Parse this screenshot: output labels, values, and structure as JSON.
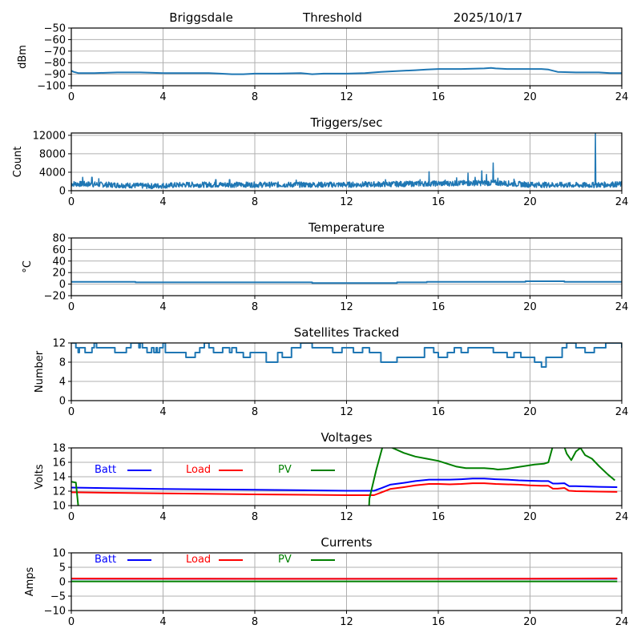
{
  "header": {
    "station": "Briggsdale",
    "mode": "Threshold",
    "date": "2025/10/17"
  },
  "chart_data": [
    {
      "id": "threshold",
      "type": "line",
      "title": "",
      "xlabel": "",
      "ylabel": "dBm",
      "xlim": [
        0,
        24
      ],
      "ylim": [
        -100,
        -50
      ],
      "xticks": [
        "0",
        "4",
        "8",
        "12",
        "16",
        "20",
        "24"
      ],
      "yticks": [
        "−100",
        "−90",
        "−80",
        "−70",
        "−60",
        "−50"
      ],
      "ytick_values": [
        -100,
        -90,
        -80,
        -70,
        -60,
        -50
      ],
      "grid": true,
      "series": [
        {
          "name": "threshold",
          "color": "#1f77b4",
          "x": [
            0,
            0.1,
            0.3,
            1,
            2,
            3,
            4,
            5,
            6,
            6.5,
            7,
            7.5,
            8,
            9,
            10,
            10.5,
            11,
            12,
            12.8,
            13.5,
            14,
            14.5,
            15,
            15.5,
            16,
            17,
            18,
            18.3,
            18.5,
            19,
            20,
            20.5,
            20.8,
            21.2,
            22,
            23,
            23.5,
            24
          ],
          "y": [
            -87,
            -88,
            -89,
            -89,
            -88.5,
            -88.5,
            -89,
            -89,
            -89,
            -89.5,
            -90,
            -90,
            -89.5,
            -89.5,
            -89,
            -90,
            -89.5,
            -89.5,
            -89,
            -88,
            -87.5,
            -87,
            -86.5,
            -86,
            -85.5,
            -85.5,
            -85,
            -84.5,
            -85,
            -85.5,
            -85.5,
            -85.5,
            -86,
            -88,
            -88.5,
            -88.5,
            -89,
            -89
          ]
        }
      ]
    },
    {
      "id": "triggers",
      "type": "line",
      "title": "Triggers/sec",
      "xlabel": "",
      "ylabel": "Count",
      "xlim": [
        0,
        24
      ],
      "ylim": [
        0,
        12500
      ],
      "xticks": [
        "0",
        "4",
        "8",
        "12",
        "16",
        "20",
        "24"
      ],
      "yticks": [
        "0",
        "4000",
        "8000",
        "12000"
      ],
      "ytick_values": [
        0,
        4000,
        8000,
        12000
      ],
      "grid": true,
      "series": [
        {
          "name": "triggers",
          "color": "#1f77b4",
          "baseline": [
            [
              0,
              1500
            ],
            [
              1.5,
              1300
            ],
            [
              3.5,
              1000
            ],
            [
              5,
              1300
            ],
            [
              8,
              1300
            ],
            [
              12,
              1300
            ],
            [
              15,
              1500
            ],
            [
              18.5,
              1700
            ],
            [
              20,
              1300
            ],
            [
              22.5,
              1200
            ],
            [
              24,
              1400
            ]
          ],
          "spikes": [
            [
              0.5,
              2900
            ],
            [
              0.9,
              2900
            ],
            [
              1.2,
              2600
            ],
            [
              6.3,
              2400
            ],
            [
              6.9,
              2400
            ],
            [
              9.8,
              2300
            ],
            [
              13.7,
              2400
            ],
            [
              15.2,
              2400
            ],
            [
              15.6,
              4100
            ],
            [
              16.3,
              2300
            ],
            [
              16.8,
              2800
            ],
            [
              17.3,
              3800
            ],
            [
              17.6,
              2900
            ],
            [
              17.9,
              4300
            ],
            [
              18.1,
              3500
            ],
            [
              18.4,
              6000
            ],
            [
              18.6,
              2700
            ],
            [
              19.3,
              2500
            ],
            [
              20.1,
              1800
            ],
            [
              22.85,
              12500
            ],
            [
              23.6,
              1900
            ]
          ]
        }
      ]
    },
    {
      "id": "temperature",
      "type": "line",
      "title": "Temperature",
      "xlabel": "",
      "ylabel": "°C",
      "xlim": [
        0,
        24
      ],
      "ylim": [
        -20,
        80
      ],
      "xticks": [
        "0",
        "4",
        "8",
        "12",
        "16",
        "20",
        "24"
      ],
      "yticks": [
        "−20",
        "0",
        "20",
        "40",
        "60",
        "80"
      ],
      "ytick_values": [
        -20,
        0,
        20,
        40,
        60,
        80
      ],
      "grid": true,
      "series": [
        {
          "name": "temperature",
          "color": "#1f77b4",
          "step": true,
          "x": [
            0,
            2.8,
            10.5,
            14.2,
            15.5,
            19.8,
            21.5,
            24
          ],
          "y": [
            4,
            3,
            2,
            3,
            4,
            5,
            4,
            4
          ]
        }
      ]
    },
    {
      "id": "satellites",
      "type": "line",
      "title": "Satellites Tracked",
      "xlabel": "",
      "ylabel": "Number",
      "xlim": [
        0,
        24
      ],
      "ylim": [
        0,
        12
      ],
      "xticks": [
        "0",
        "4",
        "8",
        "12",
        "16",
        "20",
        "24"
      ],
      "yticks": [
        "0",
        "4",
        "8",
        "12"
      ],
      "ytick_values": [
        0,
        4,
        8,
        12
      ],
      "grid": true,
      "series": [
        {
          "name": "satellites",
          "color": "#1f77b4",
          "step": true,
          "x": [
            0,
            0.2,
            0.3,
            0.35,
            0.5,
            0.6,
            0.9,
            1.0,
            1.1,
            1.3,
            1.9,
            2.4,
            2.6,
            2.8,
            2.95,
            3.0,
            3.1,
            3.3,
            3.5,
            3.6,
            3.7,
            3.75,
            3.85,
            4.0,
            4.1,
            4.5,
            5.0,
            5.4,
            5.6,
            5.8,
            6.0,
            6.2,
            6.6,
            6.9,
            7.0,
            7.2,
            7.5,
            7.8,
            8.2,
            8.5,
            8.8,
            9.0,
            9.2,
            9.6,
            10.0,
            10.5,
            11.0,
            11.4,
            11.8,
            12.3,
            12.7,
            13.0,
            13.5,
            13.8,
            14.2,
            14.6,
            15.0,
            15.4,
            15.8,
            16.0,
            16.4,
            16.7,
            17.0,
            17.3,
            18.0,
            18.4,
            18.7,
            19.0,
            19.3,
            19.6,
            20.0,
            20.2,
            20.5,
            20.7,
            21.0,
            21.4,
            21.6,
            22.0,
            22.4,
            22.8,
            23.1,
            23.3,
            23.6,
            24
          ],
          "y": [
            12,
            11,
            10,
            11,
            11,
            10,
            11,
            12,
            11,
            11,
            10,
            11,
            12,
            12,
            11,
            12,
            11,
            10,
            11,
            10,
            11,
            10,
            11,
            12,
            10,
            10,
            9,
            10,
            11,
            12,
            11,
            10,
            11,
            10,
            11,
            10,
            9,
            10,
            10,
            8,
            8,
            10,
            9,
            11,
            12,
            11,
            11,
            10,
            11,
            10,
            11,
            10,
            8,
            8,
            9,
            9,
            9,
            11,
            10,
            9,
            10,
            11,
            10,
            11,
            11,
            10,
            10,
            9,
            10,
            9,
            9,
            8,
            7,
            9,
            9,
            11,
            12,
            11,
            10,
            11,
            11,
            12,
            12,
            11
          ]
        }
      ]
    },
    {
      "id": "voltages",
      "type": "line",
      "title": "Voltages",
      "xlabel": "",
      "ylabel": "Volts",
      "xlim": [
        0,
        24
      ],
      "ylim": [
        10,
        18
      ],
      "xticks": [
        "0",
        "4",
        "8",
        "12",
        "16",
        "20",
        "24"
      ],
      "yticks": [
        "10",
        "12",
        "14",
        "16",
        "18"
      ],
      "ytick_values": [
        10,
        12,
        14,
        16,
        18
      ],
      "grid": true,
      "legend": {
        "placement": "top-inline",
        "entries": [
          "Batt",
          "Load",
          "PV"
        ]
      },
      "series": [
        {
          "name": "Batt",
          "color": "#0000ff",
          "x": [
            0,
            4,
            8,
            12,
            13.2,
            13.5,
            13.9,
            14.5,
            15.0,
            15.6,
            16.0,
            16.5,
            17.0,
            17.5,
            18.0,
            18.5,
            19.0,
            19.5,
            20.0,
            20.5,
            20.8,
            21.0,
            21.2,
            21.5,
            21.7,
            22.0,
            23.0,
            23.8
          ],
          "y": [
            12.5,
            12.3,
            12.2,
            12.05,
            12.05,
            12.4,
            12.9,
            13.15,
            13.4,
            13.6,
            13.6,
            13.6,
            13.65,
            13.75,
            13.75,
            13.65,
            13.6,
            13.5,
            13.45,
            13.4,
            13.4,
            13.05,
            13.05,
            13.1,
            12.7,
            12.7,
            12.6,
            12.55
          ]
        },
        {
          "name": "Load",
          "color": "#ff0000",
          "x": [
            0,
            4,
            8,
            12,
            13.2,
            13.5,
            13.9,
            14.5,
            15.0,
            15.6,
            16.0,
            16.5,
            17.0,
            17.5,
            18.0,
            18.5,
            19.0,
            19.5,
            20.0,
            20.5,
            20.8,
            21.0,
            21.2,
            21.5,
            21.7,
            22.0,
            23.0,
            23.8
          ],
          "y": [
            11.85,
            11.7,
            11.55,
            11.45,
            11.45,
            11.8,
            12.3,
            12.55,
            12.8,
            13.0,
            13.0,
            12.95,
            13.0,
            13.1,
            13.1,
            13.0,
            12.95,
            12.9,
            12.8,
            12.75,
            12.75,
            12.35,
            12.35,
            12.45,
            12.05,
            12.0,
            11.95,
            11.9
          ]
        },
        {
          "name": "PV",
          "color": "#008000",
          "x": [
            0,
            0.2,
            0.3,
            0.35,
            12.9,
            13.0,
            13.3,
            13.6,
            14.0,
            14.5,
            15.0,
            15.5,
            16.0,
            16.4,
            16.8,
            17.2,
            17.6,
            18.0,
            18.4,
            18.6,
            19.0,
            19.4,
            19.8,
            20.2,
            20.6,
            20.8,
            21.0,
            21.2,
            21.4,
            21.6,
            21.8,
            22.0,
            22.2,
            22.4,
            22.7,
            23.0,
            23.4,
            23.7
          ],
          "y": [
            13.3,
            13.2,
            10.0,
            5.0,
            5.0,
            11.0,
            15.0,
            18.5,
            18.0,
            17.3,
            16.8,
            16.5,
            16.2,
            15.8,
            15.4,
            15.2,
            15.2,
            15.2,
            15.1,
            15.0,
            15.1,
            15.3,
            15.5,
            15.7,
            15.8,
            16.0,
            18.3,
            19.5,
            19.0,
            17.2,
            16.3,
            17.5,
            18.0,
            17.0,
            16.5,
            15.5,
            14.3,
            13.5
          ]
        }
      ]
    },
    {
      "id": "currents",
      "type": "line",
      "title": "Currents",
      "xlabel": "",
      "ylabel": "Amps",
      "xlim": [
        0,
        24
      ],
      "ylim": [
        -10,
        10
      ],
      "xticks": [
        "0",
        "4",
        "8",
        "12",
        "16",
        "20",
        "24"
      ],
      "yticks": [
        "−10",
        "−5",
        "0",
        "5",
        "10"
      ],
      "ytick_values": [
        -10,
        -5,
        0,
        5,
        10
      ],
      "grid": true,
      "legend": {
        "placement": "top-inline",
        "entries": [
          "Batt",
          "Load",
          "PV"
        ]
      },
      "series": [
        {
          "name": "Batt",
          "color": "#0000ff",
          "x": [
            0,
            23.8
          ],
          "y": [
            1.0,
            1.0
          ]
        },
        {
          "name": "Load",
          "color": "#ff0000",
          "x": [
            0,
            4,
            8,
            12,
            16,
            20,
            22,
            23.8
          ],
          "y": [
            1.1,
            1.05,
            1.0,
            1.0,
            1.0,
            1.05,
            1.1,
            1.15
          ]
        },
        {
          "name": "PV",
          "color": "#008000",
          "x": [
            0,
            23.8
          ],
          "y": [
            0.1,
            0.1
          ]
        }
      ]
    }
  ]
}
